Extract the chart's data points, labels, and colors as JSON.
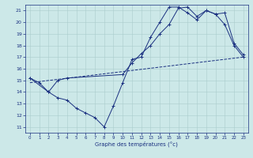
{
  "xlabel": "Graphe des températures (°c)",
  "bg_color": "#cce8e8",
  "line_color": "#1a3080",
  "grid_color": "#aacccc",
  "ylim": [
    10.5,
    21.5
  ],
  "xlim": [
    -0.5,
    23.5
  ],
  "yticks": [
    11,
    12,
    13,
    14,
    15,
    16,
    17,
    18,
    19,
    20,
    21
  ],
  "xticks": [
    0,
    1,
    2,
    3,
    4,
    5,
    6,
    7,
    8,
    9,
    10,
    11,
    12,
    13,
    14,
    15,
    16,
    17,
    18,
    19,
    20,
    21,
    22,
    23
  ],
  "line1_x": [
    0,
    1,
    2,
    3,
    4,
    5,
    6,
    7,
    8,
    9,
    10,
    11,
    12,
    13,
    14,
    15,
    16,
    17,
    18,
    19,
    20,
    21,
    22,
    23
  ],
  "line1_y": [
    15.2,
    14.8,
    14.0,
    13.5,
    13.3,
    12.6,
    12.2,
    11.8,
    11.0,
    12.8,
    14.8,
    16.8,
    17.0,
    18.7,
    20.0,
    21.3,
    21.3,
    20.8,
    20.2,
    21.0,
    20.7,
    19.8,
    18.0,
    17.0
  ],
  "line2_x": [
    0,
    2,
    3,
    4,
    10,
    11,
    12,
    13,
    14,
    15,
    16,
    17,
    18,
    19,
    20,
    21,
    22,
    23
  ],
  "line2_y": [
    15.2,
    14.0,
    15.0,
    15.2,
    15.5,
    16.5,
    17.3,
    18.0,
    19.0,
    19.8,
    21.2,
    21.3,
    20.5,
    21.0,
    20.7,
    20.8,
    18.2,
    17.2
  ],
  "line3_x": [
    0,
    23
  ],
  "line3_y": [
    14.8,
    17.0
  ]
}
